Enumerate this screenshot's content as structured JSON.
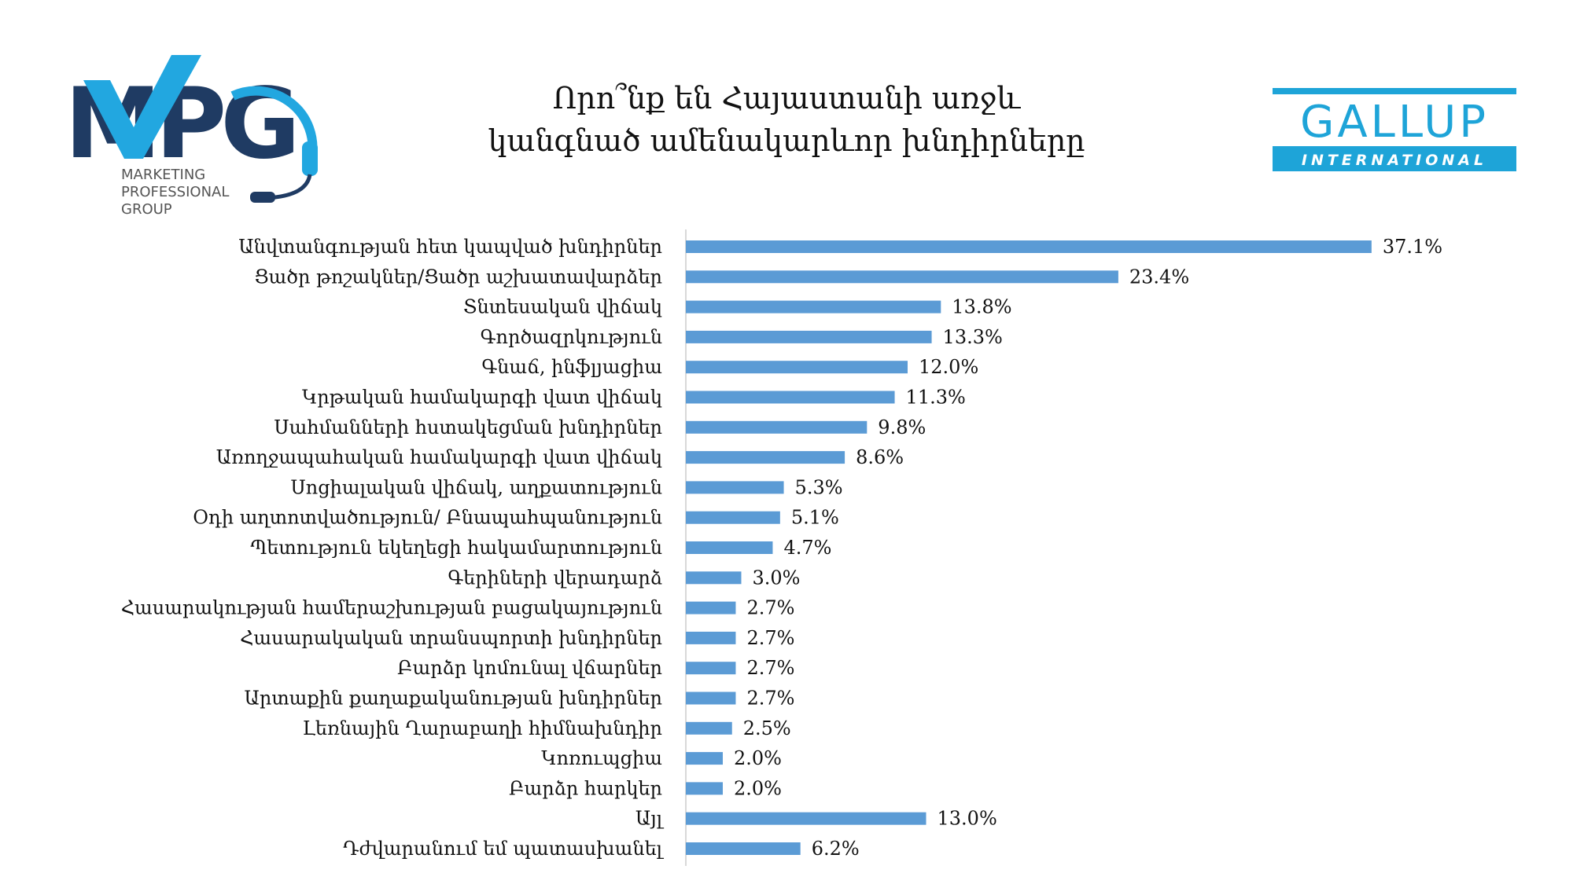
{
  "title_lines": [
    "Որո՞նք են Հայաստանի առջև",
    "կանգնած ամենակարևոր խնդիրները"
  ],
  "logos": {
    "mpg": {
      "letters": "MPG",
      "tagline": [
        "MARKETING",
        "PROFESSIONAL",
        "GROUP"
      ],
      "color_dark": "#1f3b63",
      "color_accent": "#22a7e0"
    },
    "gallup": {
      "name": "GALLUP",
      "subname": "INTERNATIONAL",
      "color": "#1ea4d8"
    }
  },
  "colors": {
    "bar": "#5b9bd5",
    "axis": "#d9d9d9"
  },
  "chart_data": {
    "type": "bar",
    "orientation": "horizontal",
    "title": "Որո՞նք են Հայաստանի առջև կանգնած ամենակարևոր խնդիրները",
    "categories": [
      "Անվտանգության հետ կապված խնդիրներ",
      "Ցածր թոշակներ/Ցածր աշխատավարձեր",
      "Տնտեսական վիճակ",
      "Գործազրկություն",
      "Գնաճ, ինֆլյացիա",
      "Կրթական համակարգի վատ վիճակ",
      "Սահմանների հստակեցման խնդիրներ",
      "Առողջապահական համակարգի վատ վիճակ",
      "Սոցիալական վիճակ, աղքատություն",
      "Օդի աղտոտվածություն/ Բնապահպանություն",
      "Պետություն եկեղեցի հակամարտություն",
      "Գերիների վերադարձ",
      "Հասարակության համերաշխության բացակայություն",
      "Հասարակական տրանսպորտի խնդիրներ",
      "Բարձր կոմունալ վճարներ",
      "Արտաքին քաղաքականության խնդիրներ",
      "Լեռնային Ղարաբաղի հիմնախնդիր",
      "Կոռուպցիա",
      "Բարձր հարկեր",
      "Այլ",
      "Դժվարանում եմ պատասխանել"
    ],
    "values": [
      37.1,
      23.4,
      13.8,
      13.3,
      12.0,
      11.3,
      9.8,
      8.6,
      5.3,
      5.1,
      4.7,
      3.0,
      2.7,
      2.7,
      2.7,
      2.7,
      2.5,
      2.0,
      2.0,
      13.0,
      6.2
    ],
    "value_labels": [
      "37.1%",
      "23.4%",
      "13.8%",
      "13.3%",
      "12.0%",
      "11.3%",
      "9.8%",
      "8.6%",
      "5.3%",
      "5.1%",
      "4.7%",
      "3.0%",
      "2.7%",
      "2.7%",
      "2.7%",
      "2.7%",
      "2.5%",
      "2.0%",
      "2.0%",
      "13.0%",
      "6.2%"
    ],
    "unit": "%",
    "xlim": [
      0,
      40
    ],
    "grid": false,
    "legend": "none"
  }
}
